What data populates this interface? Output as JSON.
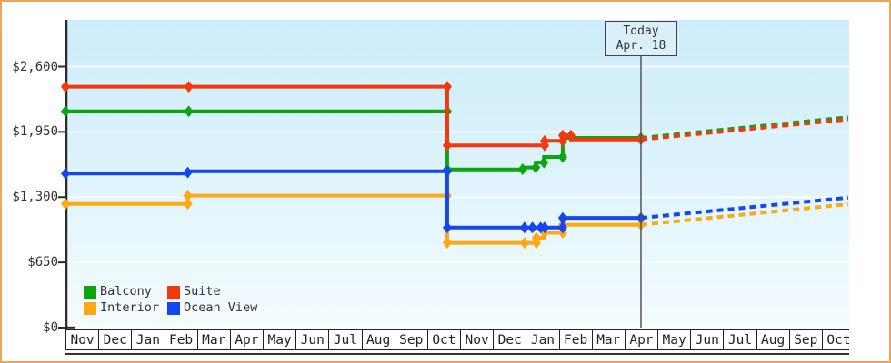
{
  "window": {
    "border_color": "#eaa55e",
    "background_color": "#ffffff",
    "plot_bg_top": "#cdedfa",
    "plot_bg_bottom": "#f6fcff"
  },
  "today_marker": {
    "line1": "Today",
    "line2": "Apr. 18",
    "t": 17.5
  },
  "chart_data": {
    "type": "line",
    "title": "",
    "xlabel": "",
    "ylabel": "",
    "grid": "faint white horizontal gridlines at y ticks",
    "legend_position": "bottom-left inside plot",
    "x_axis": {
      "unit": "month",
      "cells": 24,
      "months": [
        "Nov",
        "Dec",
        "Jan",
        "Feb",
        "Mar",
        "Apr",
        "May",
        "Jun",
        "Jul",
        "Aug",
        "Sep",
        "Oct",
        "Nov",
        "Dec",
        "Jan",
        "Feb",
        "Mar",
        "Apr",
        "May",
        "Jun",
        "Jul",
        "Aug",
        "Sep",
        "Oct"
      ]
    },
    "y_axis": {
      "range": [
        0,
        3065
      ],
      "ticks": [
        {
          "label": "$0",
          "value": 0
        },
        {
          "label": "$650",
          "value": 650
        },
        {
          "label": "$1,300",
          "value": 1300
        },
        {
          "label": "$1,950",
          "value": 1950
        },
        {
          "label": "$2,600",
          "value": 2600
        }
      ]
    },
    "projection_style": "dashed after today",
    "series": [
      {
        "name": "Balcony",
        "color": "#0da50d",
        "solid": [
          [
            0,
            2155
          ],
          [
            3.75,
            2155
          ],
          [
            11.61,
            2155
          ],
          [
            11.61,
            1575
          ],
          [
            13.9,
            1575
          ],
          [
            13.9,
            1595
          ],
          [
            14.3,
            1595
          ],
          [
            14.3,
            1645
          ],
          [
            14.55,
            1645
          ],
          [
            14.55,
            1700
          ],
          [
            15.12,
            1700
          ],
          [
            15.12,
            1890
          ],
          [
            17.5,
            1890
          ]
        ],
        "markers": [
          [
            0,
            2155
          ],
          [
            3.75,
            2155
          ],
          [
            11.61,
            2155
          ],
          [
            11.61,
            1575
          ],
          [
            13.9,
            1578
          ],
          [
            14.3,
            1595
          ],
          [
            14.55,
            1645
          ],
          [
            15.12,
            1700
          ],
          [
            17.5,
            1890
          ]
        ],
        "dashed": [
          [
            17.5,
            1890
          ],
          [
            23.8,
            2095
          ]
        ]
      },
      {
        "name": "Suite",
        "color": "#f5380b",
        "solid": [
          [
            0,
            2400
          ],
          [
            3.75,
            2400
          ],
          [
            11.61,
            2400
          ],
          [
            11.61,
            1815
          ],
          [
            14.57,
            1815
          ],
          [
            14.57,
            1860
          ],
          [
            15.12,
            1860
          ],
          [
            15.12,
            1915
          ],
          [
            15.37,
            1915
          ],
          [
            15.37,
            1875
          ],
          [
            17.5,
            1875
          ]
        ],
        "markers": [
          [
            0,
            2400
          ],
          [
            3.75,
            2400
          ],
          [
            11.61,
            2400
          ],
          [
            11.61,
            1815
          ],
          [
            14.57,
            1815
          ],
          [
            14.57,
            1860
          ],
          [
            15.12,
            1860
          ],
          [
            15.12,
            1915
          ],
          [
            15.37,
            1915
          ],
          [
            17.5,
            1875
          ]
        ],
        "dashed": [
          [
            17.5,
            1875
          ],
          [
            23.8,
            2075
          ]
        ]
      },
      {
        "name": "Interior",
        "color": "#fda814",
        "solid": [
          [
            0,
            1233
          ],
          [
            3.72,
            1233
          ],
          [
            3.72,
            1315
          ],
          [
            11.61,
            1315
          ],
          [
            11.61,
            845
          ],
          [
            14.32,
            845
          ],
          [
            14.32,
            895
          ],
          [
            14.57,
            895
          ],
          [
            14.57,
            945
          ],
          [
            15.12,
            945
          ],
          [
            15.12,
            1025
          ],
          [
            17.5,
            1025
          ]
        ],
        "markers": [
          [
            0,
            1233
          ],
          [
            3.72,
            1233
          ],
          [
            3.72,
            1315
          ],
          [
            11.61,
            1315
          ],
          [
            11.61,
            845
          ],
          [
            13.96,
            845
          ],
          [
            14.32,
            845
          ],
          [
            14.32,
            895
          ],
          [
            14.57,
            945
          ],
          [
            15.12,
            945
          ],
          [
            15.12,
            1025
          ],
          [
            17.5,
            1025
          ]
        ],
        "dashed": [
          [
            17.5,
            1025
          ],
          [
            23.8,
            1230
          ]
        ]
      },
      {
        "name": "Ocean View",
        "color": "#1546ee",
        "solid": [
          [
            0,
            1535
          ],
          [
            3.72,
            1535
          ],
          [
            3.72,
            1558
          ],
          [
            11.61,
            1558
          ],
          [
            11.61,
            997
          ],
          [
            15.12,
            997
          ],
          [
            15.12,
            1093
          ],
          [
            17.5,
            1093
          ]
        ],
        "markers": [
          [
            0,
            1535
          ],
          [
            3.72,
            1545
          ],
          [
            11.61,
            1558
          ],
          [
            11.61,
            997
          ],
          [
            13.96,
            997
          ],
          [
            14.2,
            997
          ],
          [
            14.45,
            997
          ],
          [
            14.57,
            997
          ],
          [
            15.12,
            997
          ],
          [
            15.12,
            1093
          ],
          [
            17.5,
            1093
          ]
        ],
        "dashed": [
          [
            17.5,
            1093
          ],
          [
            23.8,
            1295
          ]
        ]
      }
    ]
  }
}
